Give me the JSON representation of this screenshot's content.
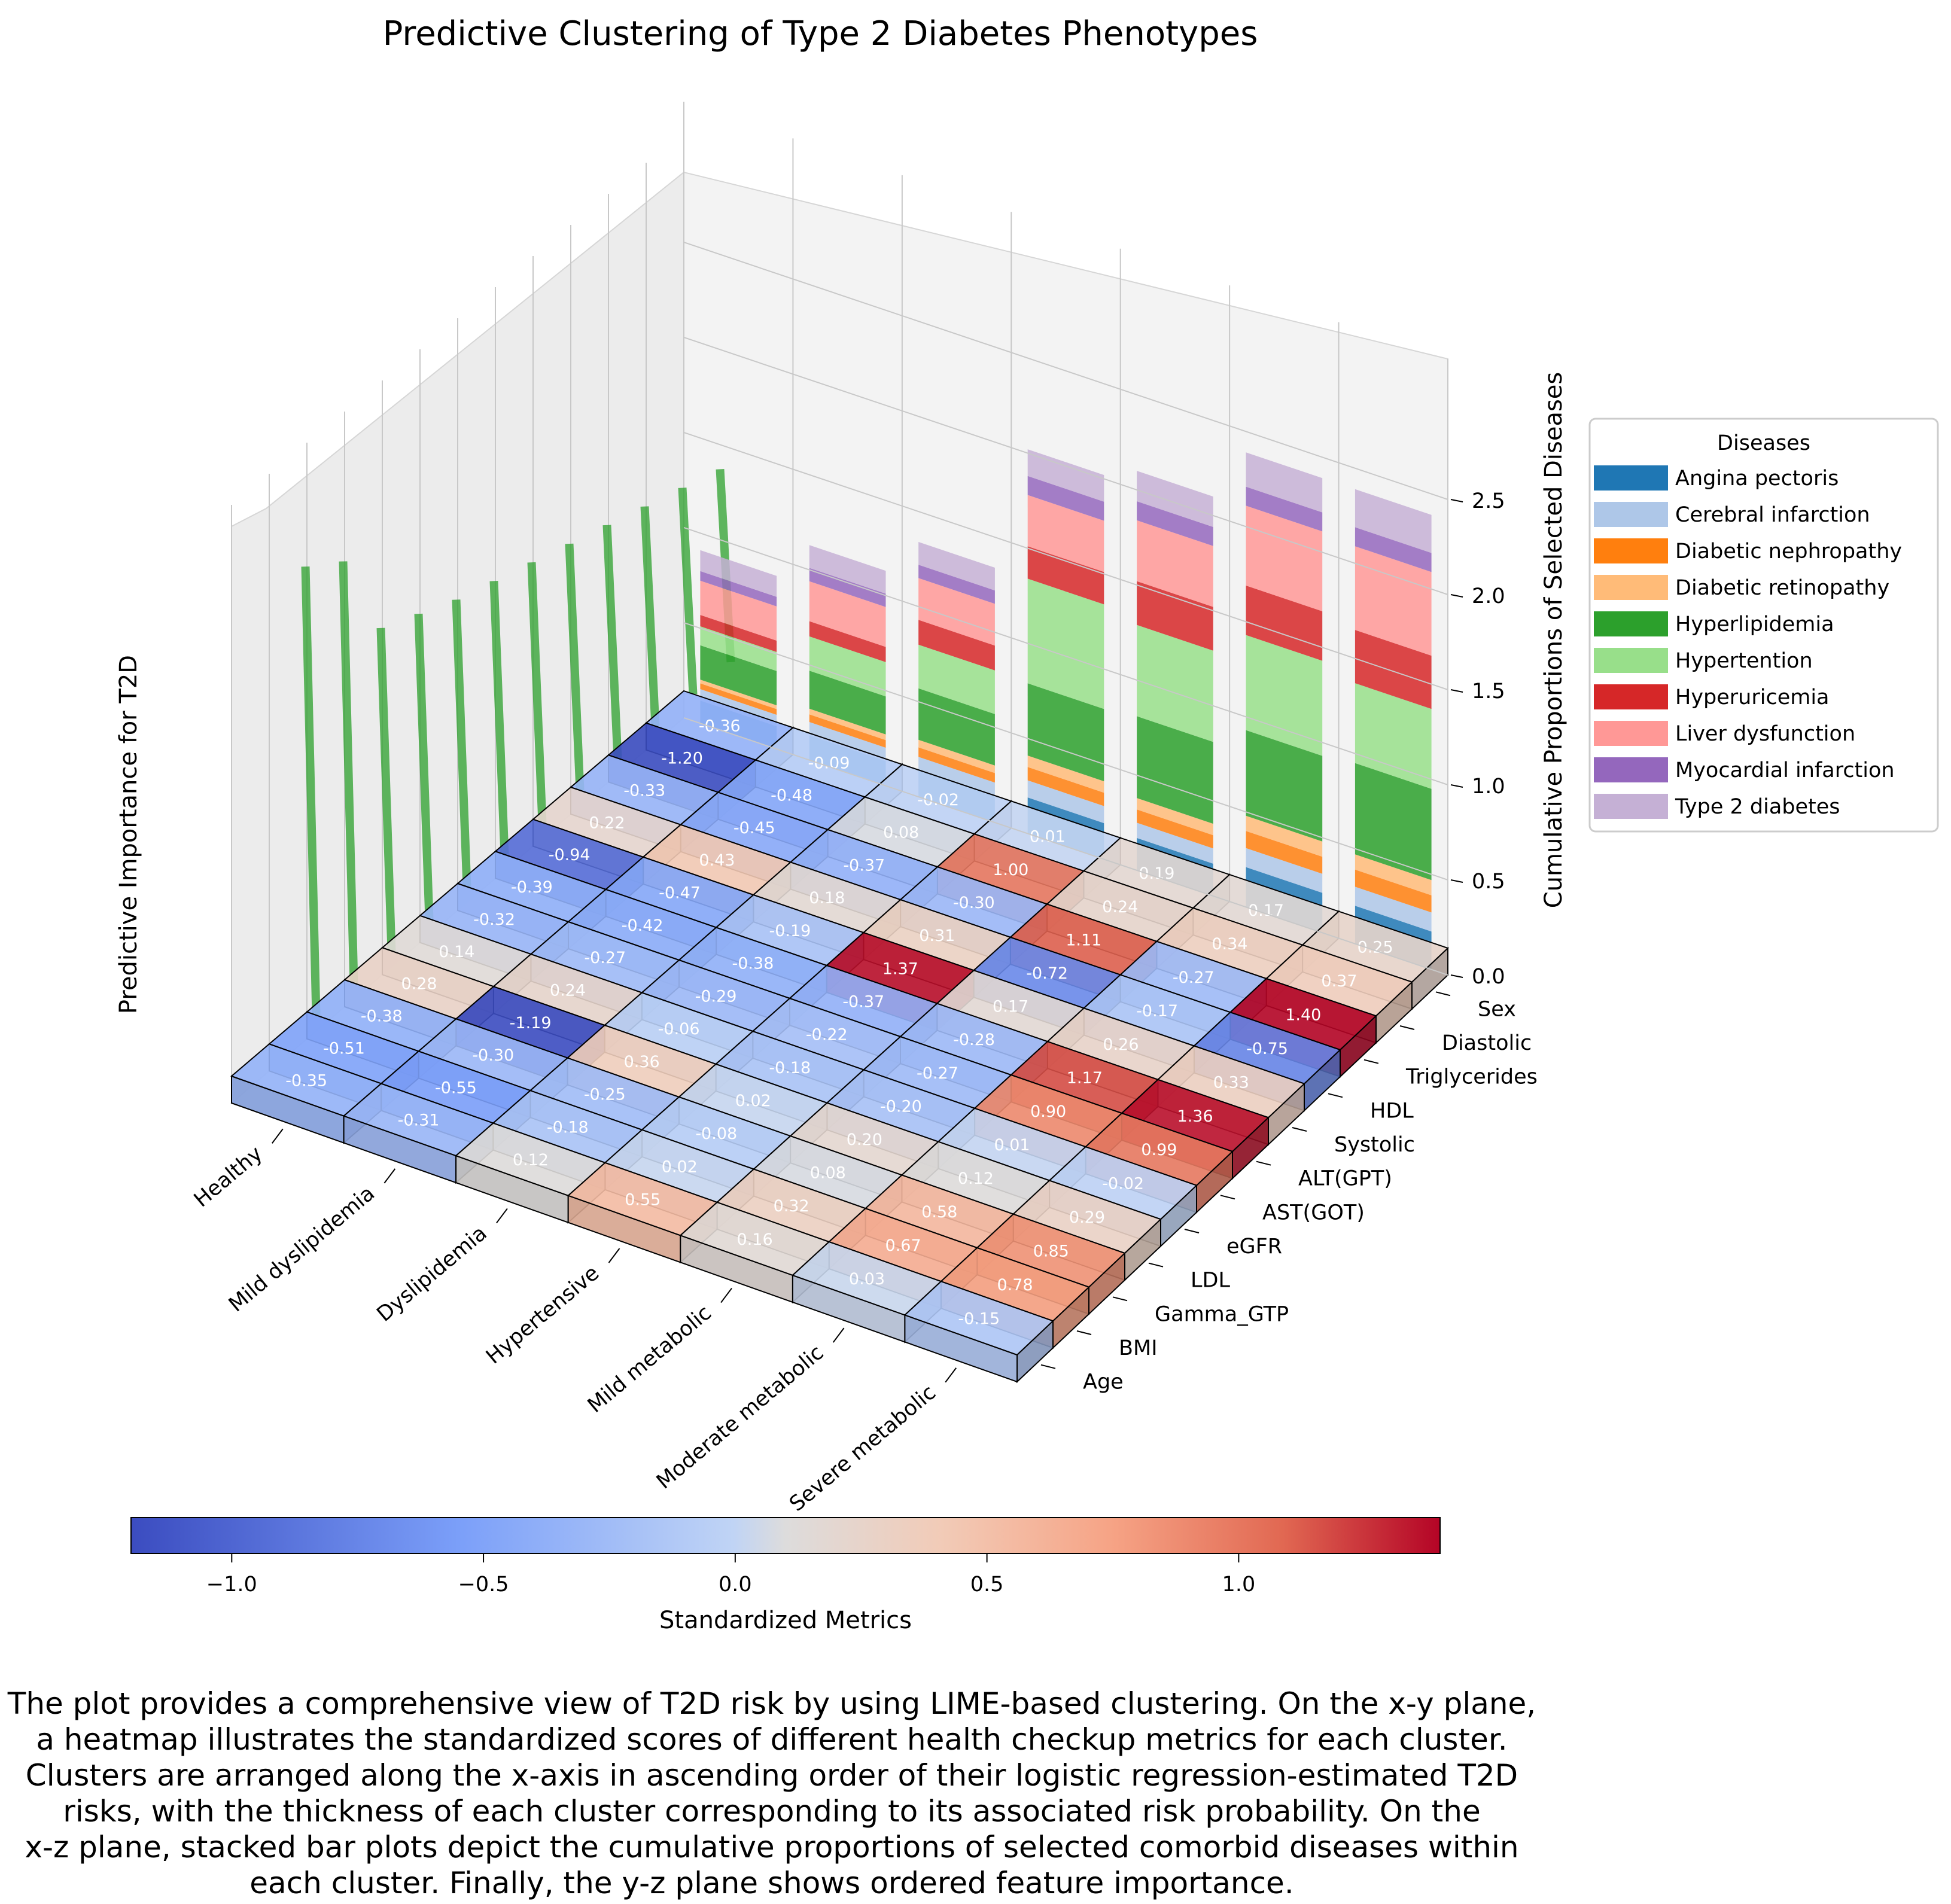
{
  "chart_data": {
    "type": "3d-heatmap-with-stacked-bars",
    "title": "Predictive Clustering of Type 2 Diabetes Phenotypes",
    "clusters": [
      "Healthy",
      "Mild dyslipidemia",
      "Dyslipidemia",
      "Hypertensive",
      "Mild metabolic",
      "Moderate metabolic",
      "Severe metabolic"
    ],
    "features": [
      "Age",
      "BMI",
      "Gamma_GTP",
      "LDL",
      "eGFR",
      "AST(GOT)",
      "ALT(GPT)",
      "Systolic",
      "HDL",
      "Triglycerides",
      "Diastolic",
      "Sex"
    ],
    "heatmap": {
      "colorbar_label": "Standardized Metrics",
      "colorbar_range": [
        -1.2,
        1.4
      ],
      "colorbar_ticks": [
        "−1.0",
        "−0.5",
        "0.0",
        "0.5",
        "1.0"
      ],
      "values": [
        [
          "-0.35",
          "-0.51",
          "-0.38",
          "0.28",
          "0.14",
          "-0.32",
          "-0.39",
          "-0.94",
          "0.22",
          "-0.33",
          "-1.20",
          "-0.36"
        ],
        [
          "-0.31",
          "-0.55",
          "-0.30",
          "-1.19",
          "0.24",
          "-0.27",
          "-0.42",
          "-0.47",
          "0.43",
          "-0.45",
          "-0.48",
          "-0.09"
        ],
        [
          "0.12",
          "-0.18",
          "-0.25",
          "0.36",
          "-0.06",
          "-0.29",
          "-0.38",
          "-0.19",
          "0.18",
          "-0.37",
          "0.08",
          "-0.02"
        ],
        [
          "0.55",
          "0.02",
          "-0.08",
          "0.02",
          "-0.18",
          "-0.22",
          "-0.37",
          "1.37",
          "0.31",
          "-0.30",
          "1.00",
          "0.01"
        ],
        [
          "0.16",
          "0.32",
          "0.08",
          "0.20",
          "-0.20",
          "-0.27",
          "-0.28",
          "0.17",
          "-0.72",
          "1.11",
          "0.24",
          "0.19"
        ],
        [
          "0.03",
          "0.67",
          "0.58",
          "0.12",
          "0.01",
          "0.90",
          "1.17",
          "0.26",
          "-0.17",
          "-0.27",
          "0.34",
          "0.17"
        ],
        [
          "-0.15",
          "0.78",
          "0.85",
          "0.29",
          "-0.02",
          "0.99",
          "1.36",
          "0.33",
          "-0.75",
          "1.40",
          "0.37",
          "0.25"
        ]
      ]
    },
    "stacked_bars": {
      "axis_label": "Cumulative Proportions of Selected Diseases",
      "z_ticks": [
        "0.0",
        "0.5",
        "1.0",
        "1.5",
        "2.0",
        "2.5"
      ],
      "legend_title": "Diseases",
      "series": [
        {
          "name": "Angina pectoris",
          "color": "#1f77b4",
          "values": [
            0.12,
            0.13,
            0.14,
            0.19,
            0.17,
            0.21,
            0.2
          ]
        },
        {
          "name": "Cerebral infarction",
          "color": "#aec7e8",
          "values": [
            0.06,
            0.07,
            0.07,
            0.09,
            0.08,
            0.1,
            0.1
          ]
        },
        {
          "name": "Diabetic nephropathy",
          "color": "#ff7f0e",
          "values": [
            0.03,
            0.04,
            0.05,
            0.07,
            0.07,
            0.09,
            0.09
          ]
        },
        {
          "name": "Diabetic retinopathy",
          "color": "#ffbb78",
          "values": [
            0.02,
            0.03,
            0.04,
            0.06,
            0.06,
            0.08,
            0.08
          ]
        },
        {
          "name": "Hyperlipidemia",
          "color": "#2ca02c",
          "values": [
            0.18,
            0.2,
            0.27,
            0.38,
            0.43,
            0.45,
            0.48
          ]
        },
        {
          "name": "Hypertention",
          "color": "#98df8a",
          "values": [
            0.1,
            0.18,
            0.23,
            0.55,
            0.48,
            0.5,
            0.42
          ]
        },
        {
          "name": "Hyperuricemia",
          "color": "#d62728",
          "values": [
            0.06,
            0.08,
            0.13,
            0.17,
            0.23,
            0.26,
            0.28
          ]
        },
        {
          "name": "Liver dysfunction",
          "color": "#ff9896",
          "values": [
            0.18,
            0.21,
            0.22,
            0.27,
            0.32,
            0.42,
            0.44
          ]
        },
        {
          "name": "Myocardial infarction",
          "color": "#9467bd",
          "values": [
            0.05,
            0.07,
            0.07,
            0.1,
            0.1,
            0.1,
            0.1
          ]
        },
        {
          "name": "Type 2 diabetes",
          "color": "#c5b0d5",
          "values": [
            0.11,
            0.12,
            0.12,
            0.14,
            0.16,
            0.18,
            0.2
          ]
        }
      ]
    },
    "feature_importance": {
      "axis_label": "Predictive Importance for T2D",
      "values": [
        1.0,
        0.94,
        0.72,
        0.68,
        0.64,
        0.61,
        0.58,
        0.55,
        0.52,
        0.49,
        0.46,
        0.43
      ],
      "color": "#2ca02c"
    }
  },
  "caption": [
    "The plot provides a comprehensive view of T2D risk by using LIME-based clustering. On the x-y plane,",
    "a heatmap illustrates the standardized scores of different health checkup metrics for each cluster.",
    "Clusters are arranged along the x-axis in ascending order of their logistic regression-estimated T2D",
    "risks, with the thickness of each cluster corresponding to its associated risk probability. On the",
    "x-z plane, stacked bar plots depict the cumulative proportions of selected comorbid diseases within",
    "each cluster. Finally, the y-z plane shows ordered feature importance."
  ]
}
